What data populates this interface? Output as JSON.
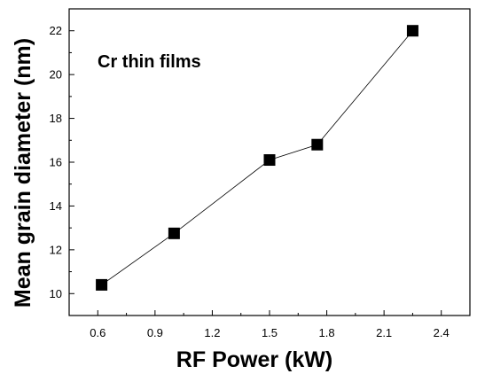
{
  "chart_data": {
    "type": "line",
    "title": "",
    "annotation": "Cr thin films",
    "xlabel": "RF Power (kW)",
    "ylabel": "Mean grain diameter (nm)",
    "xlim": [
      0.45,
      2.55
    ],
    "ylim": [
      9,
      23
    ],
    "x_ticks": [
      0.6,
      0.9,
      1.2,
      1.5,
      1.8,
      2.1,
      2.4
    ],
    "x_tick_labels": [
      "0.6",
      "0.9",
      "1.2",
      "1.5",
      "1.8",
      "2.1",
      "2.4"
    ],
    "y_ticks": [
      10,
      12,
      14,
      16,
      18,
      20,
      22
    ],
    "y_tick_labels": [
      "10",
      "12",
      "14",
      "16",
      "18",
      "20",
      "22"
    ],
    "grid": false,
    "legend": "none",
    "marker": "square",
    "series": [
      {
        "x": [
          0.62,
          1.0,
          1.5,
          1.75,
          2.25
        ],
        "y": [
          10.4,
          12.75,
          16.1,
          16.8,
          22.0
        ]
      }
    ]
  }
}
